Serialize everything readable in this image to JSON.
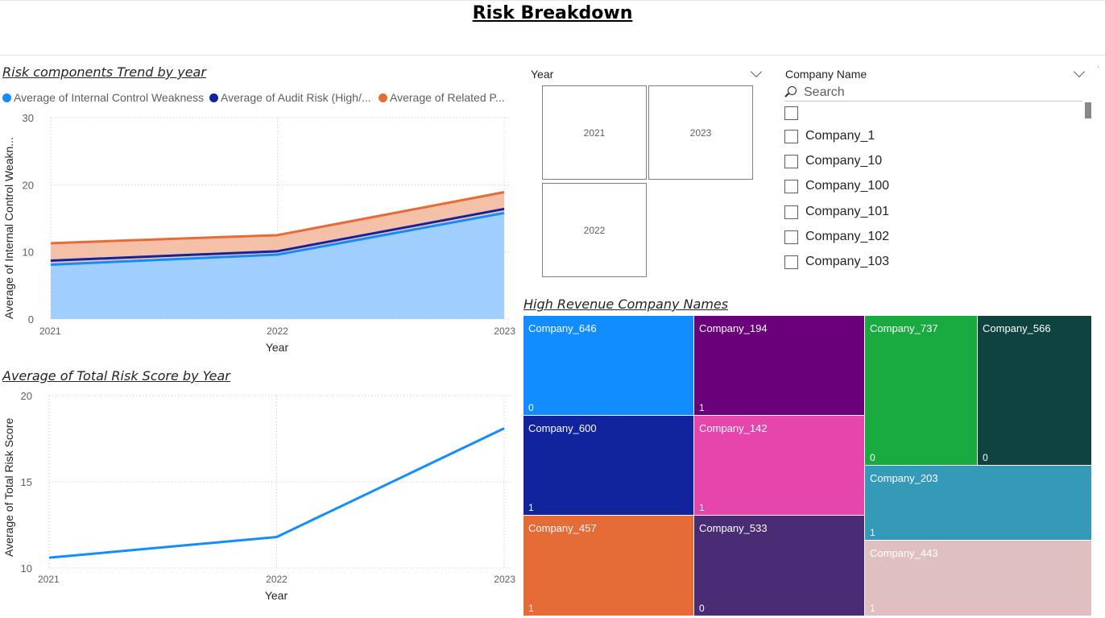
{
  "page": {
    "title": "Risk Breakdown"
  },
  "charts": {
    "trend_title": "Risk components Trend by year",
    "total_title": "Average of Total Risk Score by Year",
    "treemap_title": "High Revenue Company Names"
  },
  "legend": {
    "items": [
      {
        "label": "Average of Internal Control Weakness",
        "color": "#118dff"
      },
      {
        "label": "Average of Audit Risk (High/...",
        "color": "#12239e"
      },
      {
        "label": "Average of Related P...",
        "color": "#e66c37"
      }
    ]
  },
  "colors": {
    "internal_fill": "#a1cffd",
    "internal_line": "#118dff",
    "audit_line": "#12239e",
    "related_fill": "#f4c0a8",
    "related_line": "#e66c37",
    "total_line": "#118dff"
  },
  "chart_data": [
    {
      "type": "area",
      "title": "Risk components Trend by year",
      "xlabel": "Year",
      "ylabel": "Average of Internal Control Weakn...",
      "x": [
        "2021",
        "2022",
        "2023"
      ],
      "ylim": [
        0,
        30
      ],
      "yticks": [
        "0",
        "10",
        "20",
        "30"
      ],
      "grid": true,
      "legend_position": "top-left",
      "series": [
        {
          "name": "Average of Internal Control Weakness",
          "values": [
            8.1,
            9.6,
            15.8
          ]
        },
        {
          "name": "Average of Audit Risk (High/...",
          "values": [
            8.7,
            10.1,
            16.4
          ]
        },
        {
          "name": "Average of Related P...",
          "values": [
            11.3,
            12.5,
            18.9
          ]
        }
      ]
    },
    {
      "type": "line",
      "title": "Average of Total Risk Score by Year",
      "xlabel": "Year",
      "ylabel": "Average of Total Risk Score",
      "x": [
        "2021",
        "2022",
        "2023"
      ],
      "ylim": [
        10,
        20
      ],
      "yticks": [
        "10",
        "15",
        "20"
      ],
      "grid": true,
      "series": [
        {
          "name": "Average of Total Risk Score",
          "values": [
            10.6,
            11.8,
            18.1
          ]
        }
      ]
    },
    {
      "type": "table",
      "title": "High Revenue Company Names",
      "categories": [
        "Company_646",
        "Company_194",
        "Company_737",
        "Company_566",
        "Company_600",
        "Company_142",
        "Company_203",
        "Company_457",
        "Company_533",
        "Company_443"
      ],
      "values": [
        0,
        1,
        0,
        0,
        1,
        1,
        1,
        1,
        0,
        1
      ]
    }
  ],
  "slicers": {
    "year": {
      "header": "Year",
      "tiles": [
        "2021",
        "2023",
        "2022"
      ]
    },
    "company": {
      "header": "Company Name",
      "search_placeholder": "Search",
      "items": [
        "",
        "Company_1",
        "Company_10",
        "Company_100",
        "Company_101",
        "Company_102",
        "Company_103"
      ]
    }
  },
  "treemap": {
    "cells": [
      {
        "name": "Company_646",
        "value": "0",
        "color": "#118dff"
      },
      {
        "name": "Company_194",
        "value": "1",
        "color": "#6b007b"
      },
      {
        "name": "Company_737",
        "value": "0",
        "color": "#1aab40"
      },
      {
        "name": "Company_566",
        "value": "0",
        "color": "#0f4340"
      },
      {
        "name": "Company_600",
        "value": "1",
        "color": "#12239e"
      },
      {
        "name": "Company_142",
        "value": "1",
        "color": "#e645ab"
      },
      {
        "name": "Company_203",
        "value": "1",
        "color": "#3599b8"
      },
      {
        "name": "Company_457",
        "value": "1",
        "color": "#e66c37"
      },
      {
        "name": "Company_533",
        "value": "0",
        "color": "#4a2c75"
      },
      {
        "name": "Company_443",
        "value": "1",
        "color": "#dfbfbf"
      }
    ]
  }
}
